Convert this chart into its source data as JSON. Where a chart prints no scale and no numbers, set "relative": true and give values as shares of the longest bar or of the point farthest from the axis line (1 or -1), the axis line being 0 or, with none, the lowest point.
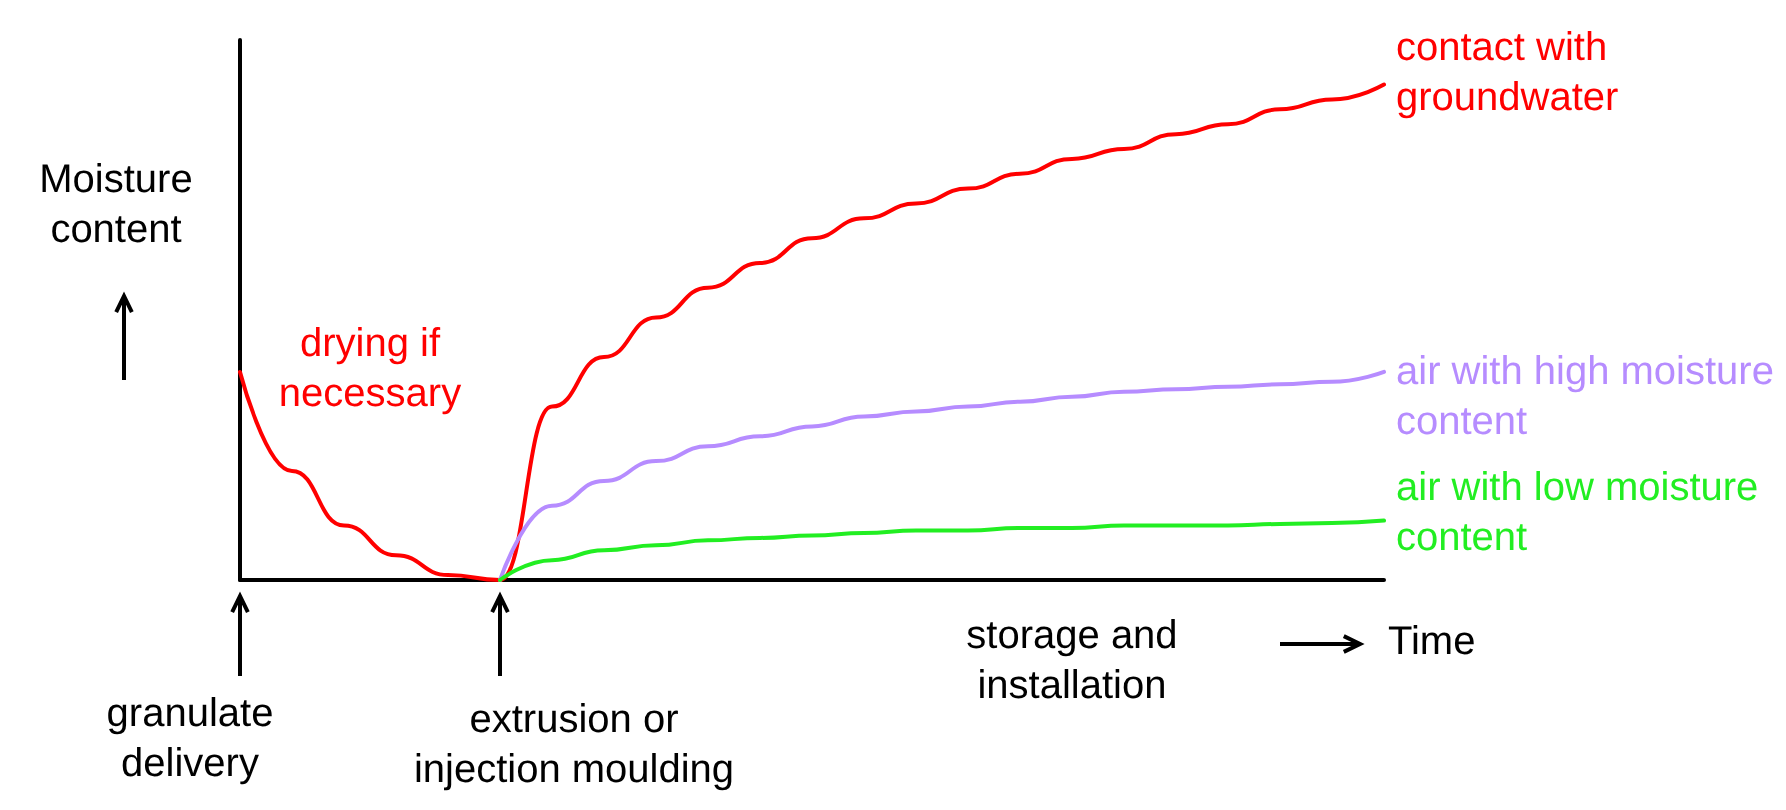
{
  "chart_data": {
    "type": "line",
    "relative": true,
    "ylabel": "Moisture content",
    "xlabel": "Time",
    "categories": [
      null,
      null,
      null,
      null,
      null,
      null,
      null,
      null,
      null,
      null,
      null,
      null,
      null,
      null,
      null,
      null,
      null,
      null,
      null,
      null,
      null,
      null,
      null
    ],
    "series": [
      {
        "name": "contact with groundwater",
        "color": "#ff0000",
        "values": [
          0.42,
          0.22,
          0.11,
          0.05,
          0.01,
          0,
          0.35,
          0.45,
          0.53,
          0.59,
          0.64,
          0.69,
          0.73,
          0.76,
          0.79,
          0.82,
          0.85,
          0.87,
          0.9,
          0.92,
          0.95,
          0.97,
          1
        ]
      },
      {
        "name": "air with high moisture content",
        "color": "#b68cff",
        "values": [
          null,
          null,
          null,
          null,
          null,
          0,
          0.15,
          0.2,
          0.24,
          0.27,
          0.29,
          0.31,
          0.33,
          0.34,
          0.35,
          0.36,
          0.37,
          0.38,
          0.385,
          0.39,
          0.395,
          0.4,
          0.42
        ]
      },
      {
        "name": "air with low moisture content",
        "color": "#22ee22",
        "values": [
          null,
          null,
          null,
          null,
          null,
          0,
          0.04,
          0.06,
          0.07,
          0.08,
          0.085,
          0.09,
          0.095,
          0.1,
          0.1,
          0.105,
          0.105,
          0.11,
          0.11,
          0.11,
          0.113,
          0.115,
          0.12
        ]
      }
    ],
    "annotations": [
      "drying if necessary",
      "granulate delivery",
      "extrusion or injection moulding",
      "storage and installation"
    ],
    "legend": false,
    "grid": false,
    "marker": "none",
    "line_style": "solid"
  }
}
